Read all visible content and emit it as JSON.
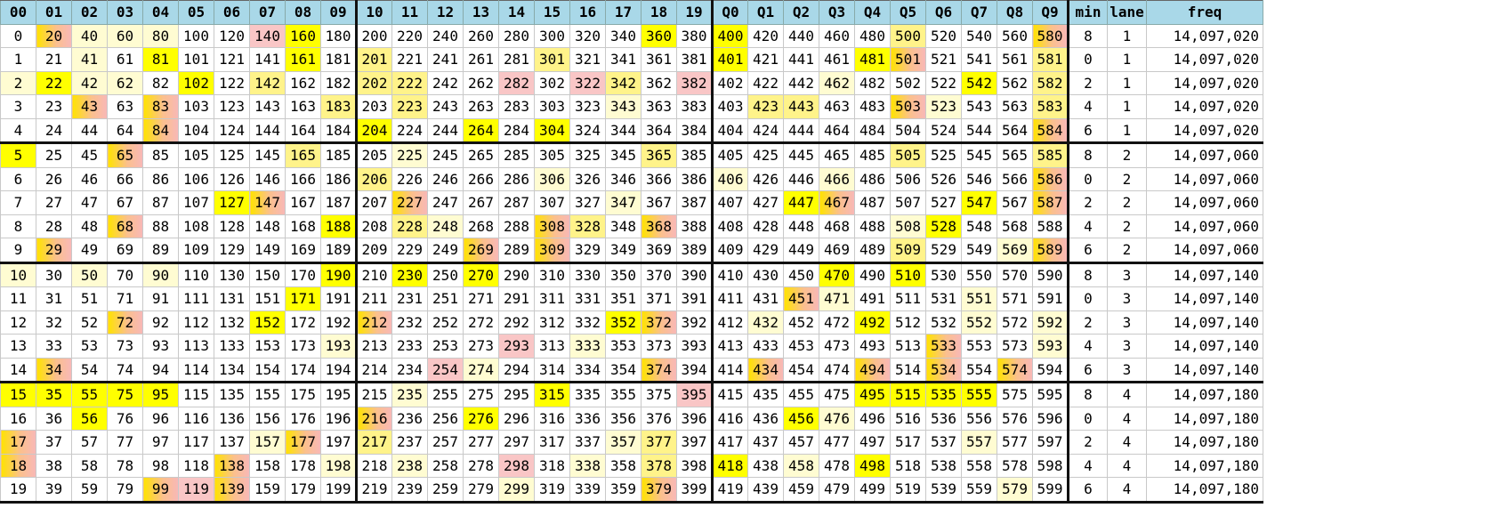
{
  "headers": [
    "00",
    "01",
    "02",
    "03",
    "04",
    "05",
    "06",
    "07",
    "08",
    "09",
    "10",
    "11",
    "12",
    "13",
    "14",
    "15",
    "16",
    "17",
    "18",
    "19",
    "Q0",
    "Q1",
    "Q2",
    "Q3",
    "Q4",
    "Q5",
    "Q6",
    "Q7",
    "Q8",
    "Q9",
    "min",
    "lane",
    "freq"
  ],
  "rows": [
    {
      "base": 0,
      "min": "8",
      "lane": "1",
      "freq": "14,097,020",
      "hl": {
        "1": 4,
        "2": 1,
        "3": 1,
        "4": 1,
        "7": 5,
        "8": 3,
        "18": 3,
        "20": 3,
        "25": 2,
        "29": 4
      }
    },
    {
      "base": 1,
      "min": "0",
      "lane": "1",
      "freq": "14,097,020",
      "hl": {
        "2": 1,
        "4": 3,
        "8": 3,
        "10": 2,
        "15": 2,
        "20": 3,
        "24": 3,
        "25": 4,
        "29": 2
      }
    },
    {
      "base": 2,
      "min": "2",
      "lane": "1",
      "freq": "14,097,020",
      "hl": {
        "0": 1,
        "1": 3,
        "2": 1,
        "3": 1,
        "5": 3,
        "7": 2,
        "10": 2,
        "11": 2,
        "14": 5,
        "16": 5,
        "17": 2,
        "19": 5,
        "23": 1,
        "27": 3,
        "29": 2
      }
    },
    {
      "base": 3,
      "min": "4",
      "lane": "1",
      "freq": "14,097,020",
      "hl": {
        "2": 4,
        "4": 4,
        "9": 2,
        "11": 2,
        "17": 1,
        "21": 2,
        "22": 2,
        "25": 4,
        "26": 1,
        "29": 2
      }
    },
    {
      "base": 4,
      "min": "6",
      "lane": "1",
      "freq": "14,097,020",
      "hl": {
        "4": 4,
        "10": 3,
        "13": 3,
        "15": 3,
        "29": 4
      }
    },
    {
      "base": 5,
      "min": "8",
      "lane": "2",
      "freq": "14,097,060",
      "hl": {
        "0": 3,
        "3": 4,
        "8": 2,
        "11": 1,
        "18": 2,
        "25": 2,
        "29": 2
      }
    },
    {
      "base": 6,
      "min": "0",
      "lane": "2",
      "freq": "14,097,060",
      "hl": {
        "10": 2,
        "15": 1,
        "20": 1,
        "23": 1,
        "29": 4
      }
    },
    {
      "base": 7,
      "min": "2",
      "lane": "2",
      "freq": "14,097,060",
      "hl": {
        "6": 3,
        "7": 4,
        "11": 4,
        "17": 1,
        "22": 3,
        "23": 4,
        "27": 3,
        "29": 4
      }
    },
    {
      "base": 8,
      "min": "4",
      "lane": "2",
      "freq": "14,097,060",
      "hl": {
        "3": 4,
        "9": 3,
        "11": 2,
        "12": 1,
        "15": 4,
        "16": 2,
        "18": 4,
        "25": 1,
        "26": 3
      }
    },
    {
      "base": 9,
      "min": "6",
      "lane": "2",
      "freq": "14,097,060",
      "hl": {
        "1": 4,
        "13": 4,
        "15": 4,
        "25": 2,
        "28": 1,
        "29": 4
      }
    },
    {
      "base": 10,
      "min": "8",
      "lane": "3",
      "freq": "14,097,140",
      "hl": {
        "0": 1,
        "2": 1,
        "4": 1,
        "9": 3,
        "11": 3,
        "13": 3,
        "23": 3,
        "25": 3
      }
    },
    {
      "base": 11,
      "min": "0",
      "lane": "3",
      "freq": "14,097,140",
      "hl": {
        "8": 3,
        "22": 4,
        "23": 1,
        "27": 1
      }
    },
    {
      "base": 12,
      "min": "2",
      "lane": "3",
      "freq": "14,097,140",
      "hl": {
        "3": 4,
        "7": 3,
        "10": 4,
        "17": 3,
        "18": 4,
        "21": 1,
        "24": 3,
        "27": 1,
        "29": 1
      }
    },
    {
      "base": 13,
      "min": "4",
      "lane": "3",
      "freq": "14,097,140",
      "hl": {
        "9": 1,
        "14": 5,
        "16": 1,
        "26": 4,
        "29": 1
      }
    },
    {
      "base": 14,
      "min": "6",
      "lane": "3",
      "freq": "14,097,140",
      "hl": {
        "1": 4,
        "12": 5,
        "13": 1,
        "18": 4,
        "21": 4,
        "24": 4,
        "26": 4,
        "28": 4
      }
    },
    {
      "base": 15,
      "min": "8",
      "lane": "4",
      "freq": "14,097,180",
      "hl": {
        "0": 3,
        "1": 3,
        "2": 3,
        "3": 3,
        "4": 3,
        "11": 1,
        "15": 3,
        "19": 5,
        "24": 3,
        "25": 3,
        "26": 3,
        "27": 3
      }
    },
    {
      "base": 16,
      "min": "0",
      "lane": "4",
      "freq": "14,097,180",
      "hl": {
        "2": 3,
        "10": 4,
        "13": 3,
        "22": 3,
        "23": 1
      }
    },
    {
      "base": 17,
      "min": "2",
      "lane": "4",
      "freq": "14,097,180",
      "hl": {
        "0": 4,
        "7": 1,
        "8": 4,
        "10": 2,
        "17": 1,
        "18": 2,
        "27": 1
      }
    },
    {
      "base": 18,
      "min": "4",
      "lane": "4",
      "freq": "14,097,180",
      "hl": {
        "0": 4,
        "6": 4,
        "9": 1,
        "11": 1,
        "14": 5,
        "16": 1,
        "18": 2,
        "20": 3,
        "22": 1,
        "24": 3
      }
    },
    {
      "base": 19,
      "min": "6",
      "lane": "4",
      "freq": "14,097,180",
      "hl": {
        "4": 4,
        "5": 5,
        "6": 4,
        "14": 1,
        "18": 4,
        "28": 1
      }
    }
  ]
}
